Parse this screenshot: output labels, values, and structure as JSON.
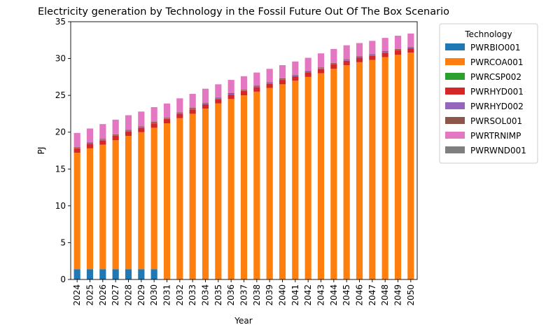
{
  "chart_data": {
    "type": "bar",
    "stacked": true,
    "title": "Electricity generation by Technology in the Fossil Future Out Of The Box Scenario",
    "xlabel": "Year",
    "ylabel": "PJ",
    "ylim": [
      0,
      35
    ],
    "yticks": [
      0,
      5,
      10,
      15,
      20,
      25,
      30,
      35
    ],
    "grid": false,
    "legend": {
      "title": "Technology",
      "placement": "outside-top-right"
    },
    "categories": [
      "2024",
      "2025",
      "2026",
      "2027",
      "2028",
      "2029",
      "2030",
      "2031",
      "2032",
      "2033",
      "2034",
      "2035",
      "2036",
      "2037",
      "2038",
      "2039",
      "2040",
      "2041",
      "2042",
      "2043",
      "2044",
      "2045",
      "2046",
      "2047",
      "2048",
      "2049",
      "2050"
    ],
    "series": [
      {
        "name": "PWRBIO001",
        "color": "#1f77b4",
        "values": [
          1.4,
          1.4,
          1.4,
          1.4,
          1.4,
          1.4,
          1.4,
          0,
          0,
          0,
          0,
          0,
          0,
          0,
          0,
          0,
          0,
          0,
          0,
          0,
          0,
          0,
          0,
          0,
          0,
          0,
          0
        ]
      },
      {
        "name": "PWRCOA001",
        "color": "#ff7f0e",
        "values": [
          15.8,
          16.4,
          16.9,
          17.5,
          18.1,
          18.6,
          19.2,
          21.2,
          21.9,
          22.5,
          23.2,
          23.9,
          24.5,
          25.0,
          25.5,
          26.0,
          26.5,
          27.0,
          27.5,
          28.0,
          28.6,
          29.1,
          29.5,
          29.8,
          30.2,
          30.5,
          30.8
        ]
      },
      {
        "name": "PWRCSP002",
        "color": "#2ca02c",
        "values": [
          0,
          0,
          0,
          0,
          0,
          0,
          0,
          0,
          0,
          0,
          0,
          0,
          0,
          0,
          0,
          0,
          0,
          0,
          0,
          0,
          0,
          0,
          0,
          0,
          0,
          0,
          0
        ]
      },
      {
        "name": "PWRHYD001",
        "color": "#d62728",
        "values": [
          0.6,
          0.6,
          0.6,
          0.6,
          0.6,
          0.6,
          0.6,
          0.6,
          0.6,
          0.6,
          0.6,
          0.6,
          0.6,
          0.6,
          0.6,
          0.6,
          0.6,
          0.6,
          0.6,
          0.6,
          0.6,
          0.6,
          0.6,
          0.6,
          0.6,
          0.6,
          0.6
        ]
      },
      {
        "name": "PWRHYD002",
        "color": "#9467bd",
        "values": [
          0.1,
          0.1,
          0.1,
          0.1,
          0.1,
          0.1,
          0.1,
          0.1,
          0.1,
          0.1,
          0.1,
          0.1,
          0.1,
          0.1,
          0.1,
          0.1,
          0.1,
          0.1,
          0.1,
          0.1,
          0.1,
          0.1,
          0.1,
          0.1,
          0.1,
          0.1,
          0.1
        ]
      },
      {
        "name": "PWRSOL001",
        "color": "#8c564b",
        "values": [
          0.1,
          0.1,
          0.1,
          0.1,
          0.1,
          0.1,
          0.1,
          0.1,
          0.1,
          0.1,
          0.1,
          0.1,
          0.1,
          0.1,
          0.1,
          0.1,
          0.1,
          0.1,
          0.1,
          0.1,
          0.1,
          0.1,
          0.1,
          0.1,
          0.1,
          0.1,
          0.1
        ]
      },
      {
        "name": "PWRTRNIMP",
        "color": "#e377c2",
        "values": [
          1.9,
          1.9,
          2.0,
          2.0,
          2.0,
          2.0,
          2.0,
          1.9,
          1.9,
          1.9,
          1.9,
          1.8,
          1.8,
          1.8,
          1.8,
          1.8,
          1.8,
          1.8,
          1.8,
          1.9,
          1.9,
          1.9,
          1.8,
          1.8,
          1.8,
          1.8,
          1.8
        ]
      },
      {
        "name": "PWRWND001",
        "color": "#7f7f7f",
        "values": [
          0,
          0,
          0,
          0,
          0,
          0,
          0,
          0,
          0,
          0,
          0,
          0,
          0,
          0,
          0,
          0,
          0,
          0,
          0,
          0,
          0,
          0,
          0,
          0,
          0,
          0,
          0
        ]
      }
    ]
  }
}
